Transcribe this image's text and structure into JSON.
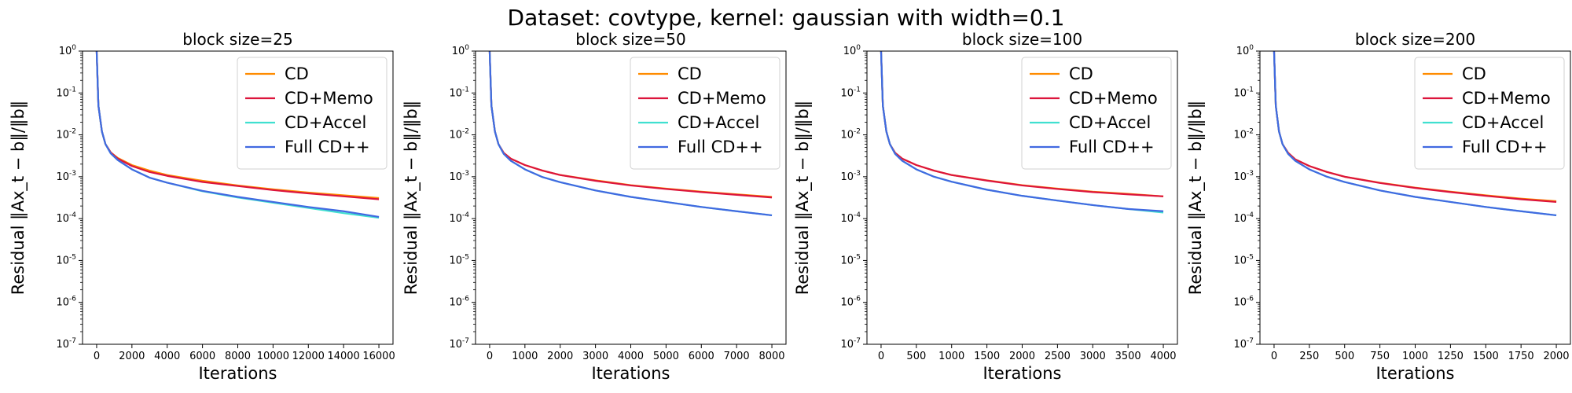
{
  "figure": {
    "title": "Dataset: covtype, kernel: gaussian with width=0.1"
  },
  "colors": {
    "CD": "#ff8c00",
    "CD+Memo": "#dc143c",
    "CD+Accel": "#40e0d0",
    "Full CD++": "#4169e1"
  },
  "chart_data": [
    {
      "type": "line",
      "title": "block size=25",
      "xlabel": "Iterations",
      "ylabel": "Residual ‖Ax_t − b‖/‖b‖",
      "yscale": "log",
      "ylim": [
        1e-07,
        1
      ],
      "xlim": [
        -800,
        16800
      ],
      "xticks": [
        0,
        2000,
        4000,
        6000,
        8000,
        10000,
        12000,
        14000,
        16000
      ],
      "legend": "top-right",
      "grid": false,
      "x": [
        0,
        100,
        300,
        500,
        800,
        1200,
        2000,
        3000,
        4000,
        6000,
        8000,
        10000,
        12000,
        14000,
        16000
      ],
      "series": [
        {
          "name": "CD",
          "values": [
            1.0,
            0.05,
            0.012,
            0.006,
            0.0038,
            0.0028,
            0.0019,
            0.0014,
            0.0011,
            0.0008,
            0.00062,
            0.0005,
            0.00042,
            0.00036,
            0.00031
          ]
        },
        {
          "name": "CD+Memo",
          "values": [
            1.0,
            0.05,
            0.012,
            0.006,
            0.0038,
            0.0027,
            0.0018,
            0.0013,
            0.00105,
            0.00075,
            0.0006,
            0.00048,
            0.0004,
            0.00034,
            0.00029
          ]
        },
        {
          "name": "CD+Accel",
          "values": [
            1.0,
            0.05,
            0.012,
            0.006,
            0.0036,
            0.0025,
            0.0015,
            0.00095,
            0.00072,
            0.00045,
            0.00032,
            0.00024,
            0.00018,
            0.000135,
            0.000105
          ]
        },
        {
          "name": "Full CD++",
          "values": [
            1.0,
            0.05,
            0.012,
            0.006,
            0.0036,
            0.0025,
            0.0015,
            0.00095,
            0.00072,
            0.00046,
            0.00033,
            0.00025,
            0.00019,
            0.00015,
            0.00011
          ]
        }
      ]
    },
    {
      "type": "line",
      "title": "block size=50",
      "xlabel": "Iterations",
      "ylabel": "Residual ‖Ax_t − b‖/‖b‖",
      "yscale": "log",
      "ylim": [
        1e-07,
        1
      ],
      "xlim": [
        -400,
        8400
      ],
      "xticks": [
        0,
        1000,
        2000,
        3000,
        4000,
        5000,
        6000,
        7000,
        8000
      ],
      "legend": "top-right",
      "grid": false,
      "x": [
        0,
        50,
        150,
        250,
        400,
        600,
        1000,
        1500,
        2000,
        3000,
        4000,
        5000,
        6000,
        7000,
        8000
      ],
      "series": [
        {
          "name": "CD",
          "values": [
            1.0,
            0.05,
            0.012,
            0.006,
            0.0037,
            0.0027,
            0.0019,
            0.0014,
            0.0011,
            0.00082,
            0.00063,
            0.00052,
            0.00044,
            0.00038,
            0.00033
          ]
        },
        {
          "name": "CD+Memo",
          "values": [
            1.0,
            0.05,
            0.012,
            0.006,
            0.0037,
            0.0027,
            0.0019,
            0.0014,
            0.0011,
            0.0008,
            0.00062,
            0.00051,
            0.00043,
            0.00037,
            0.00032
          ]
        },
        {
          "name": "CD+Accel",
          "values": [
            1.0,
            0.05,
            0.012,
            0.006,
            0.0035,
            0.0024,
            0.0015,
            0.00098,
            0.00074,
            0.00047,
            0.00033,
            0.00025,
            0.00019,
            0.00015,
            0.00012
          ]
        },
        {
          "name": "Full CD++",
          "values": [
            1.0,
            0.05,
            0.012,
            0.006,
            0.0035,
            0.0024,
            0.0015,
            0.00098,
            0.00074,
            0.00047,
            0.00033,
            0.00025,
            0.00019,
            0.00015,
            0.00012
          ]
        }
      ]
    },
    {
      "type": "line",
      "title": "block size=100",
      "xlabel": "Iterations",
      "ylabel": "Residual ‖Ax_t − b‖/‖b‖",
      "yscale": "log",
      "ylim": [
        1e-07,
        1
      ],
      "xlim": [
        -200,
        4200
      ],
      "xticks": [
        0,
        500,
        1000,
        1500,
        2000,
        2500,
        3000,
        3500,
        4000
      ],
      "legend": "top-right",
      "grid": false,
      "x": [
        0,
        25,
        75,
        125,
        200,
        300,
        500,
        750,
        1000,
        1500,
        2000,
        2500,
        3000,
        3500,
        4000
      ],
      "series": [
        {
          "name": "CD",
          "values": [
            1.0,
            0.05,
            0.012,
            0.006,
            0.0037,
            0.0027,
            0.0019,
            0.0014,
            0.0011,
            0.00082,
            0.00063,
            0.00052,
            0.00044,
            0.00039,
            0.00034
          ]
        },
        {
          "name": "CD+Memo",
          "values": [
            1.0,
            0.05,
            0.012,
            0.006,
            0.0037,
            0.0027,
            0.0019,
            0.0014,
            0.0011,
            0.00081,
            0.00062,
            0.00051,
            0.00043,
            0.00038,
            0.00034
          ]
        },
        {
          "name": "CD+Accel",
          "values": [
            1.0,
            0.05,
            0.012,
            0.006,
            0.0035,
            0.0024,
            0.0015,
            0.001,
            0.00076,
            0.00049,
            0.00035,
            0.00027,
            0.00021,
            0.00017,
            0.00014
          ]
        },
        {
          "name": "Full CD++",
          "values": [
            1.0,
            0.05,
            0.012,
            0.006,
            0.0035,
            0.0024,
            0.0015,
            0.001,
            0.00076,
            0.00049,
            0.00035,
            0.00027,
            0.00021,
            0.00017,
            0.00015
          ]
        }
      ]
    },
    {
      "type": "line",
      "title": "block size=200",
      "xlabel": "Iterations",
      "ylabel": "Residual ‖Ax_t − b‖/‖b‖",
      "yscale": "log",
      "ylim": [
        1e-07,
        1
      ],
      "xlim": [
        -100,
        2100
      ],
      "xticks": [
        0,
        250,
        500,
        750,
        1000,
        1250,
        1500,
        1750,
        2000
      ],
      "legend": "top-right",
      "grid": false,
      "x": [
        0,
        12,
        35,
        60,
        100,
        150,
        250,
        375,
        500,
        750,
        1000,
        1250,
        1500,
        1750,
        2000
      ],
      "series": [
        {
          "name": "CD",
          "values": [
            1.0,
            0.05,
            0.012,
            0.006,
            0.0037,
            0.0026,
            0.0018,
            0.0013,
            0.001,
            0.00072,
            0.00055,
            0.00044,
            0.00036,
            0.0003,
            0.00026
          ]
        },
        {
          "name": "CD+Memo",
          "values": [
            1.0,
            0.05,
            0.012,
            0.006,
            0.0037,
            0.0026,
            0.0018,
            0.0013,
            0.001,
            0.00071,
            0.00054,
            0.00043,
            0.00035,
            0.00029,
            0.00025
          ]
        },
        {
          "name": "CD+Accel",
          "values": [
            1.0,
            0.05,
            0.012,
            0.006,
            0.0035,
            0.0024,
            0.0015,
            0.001,
            0.00075,
            0.00047,
            0.00033,
            0.00025,
            0.00019,
            0.00015,
            0.00012
          ]
        },
        {
          "name": "Full CD++",
          "values": [
            1.0,
            0.05,
            0.012,
            0.006,
            0.0035,
            0.0024,
            0.0015,
            0.001,
            0.00075,
            0.00047,
            0.00033,
            0.00025,
            0.00019,
            0.00015,
            0.00012
          ]
        }
      ]
    }
  ]
}
